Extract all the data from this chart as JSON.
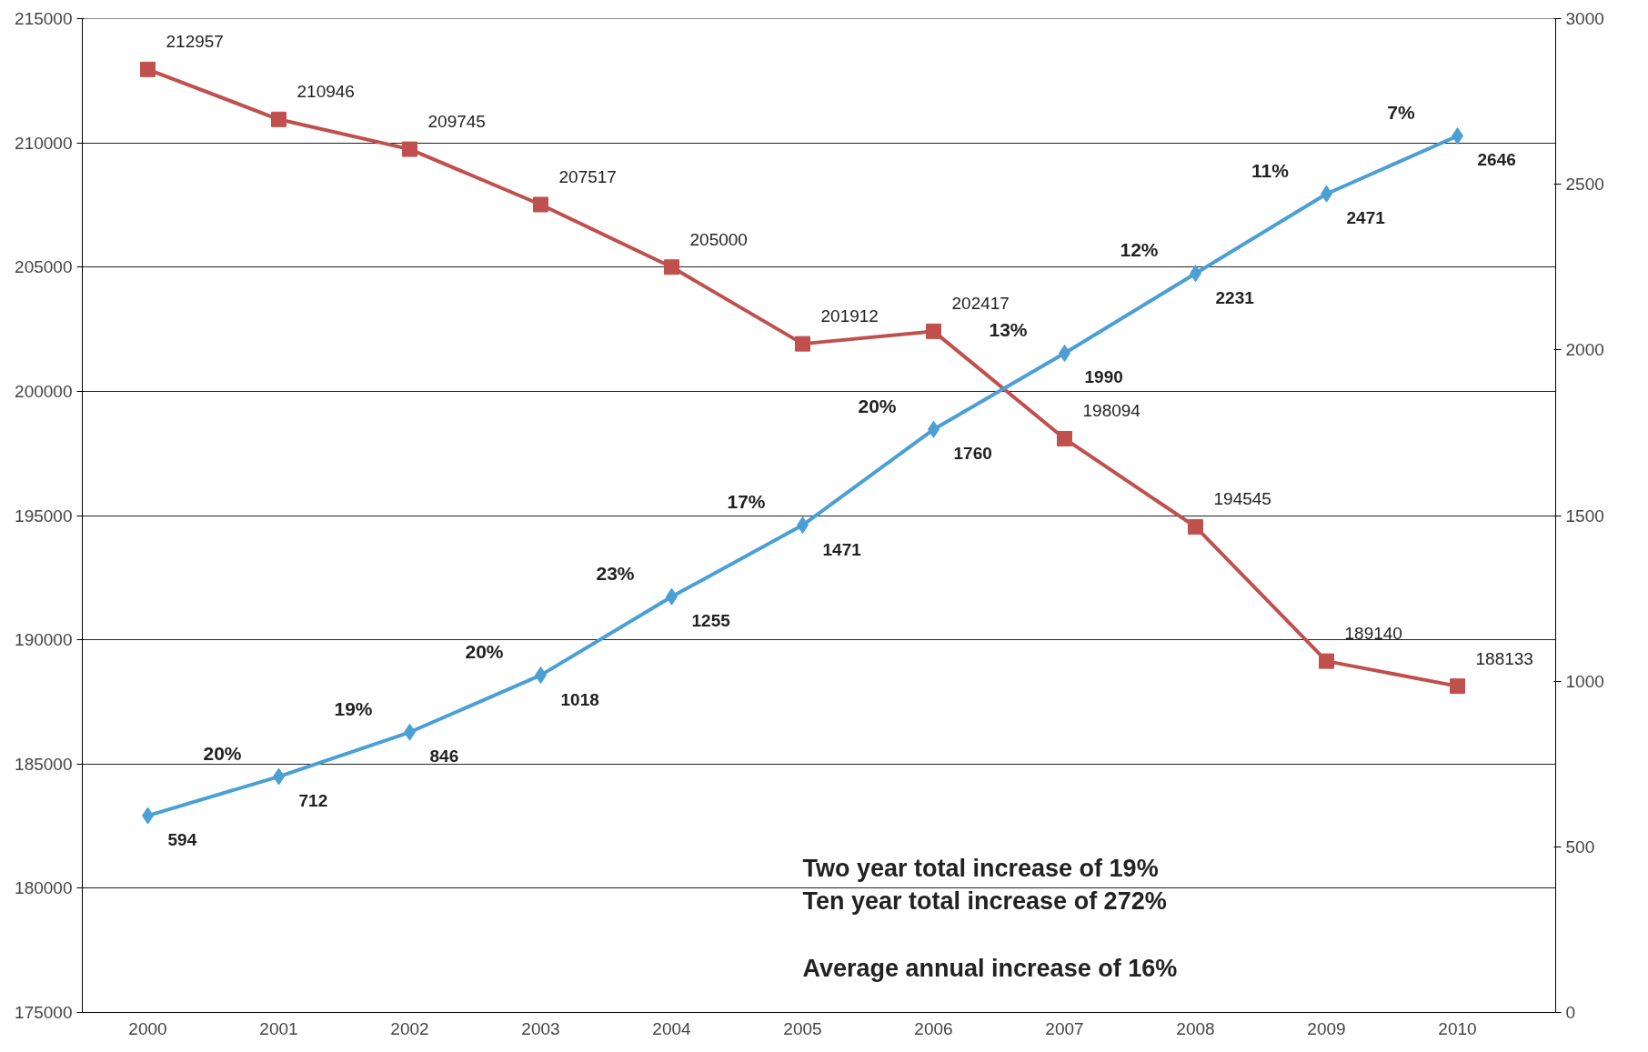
{
  "chart_data": {
    "type": "line",
    "categories": [
      "2000",
      "2001",
      "2002",
      "2003",
      "2004",
      "2005",
      "2006",
      "2007",
      "2008",
      "2009",
      "2010"
    ],
    "series": [
      {
        "color": "#c0504d",
        "marker": "square",
        "values": [
          212957,
          210946,
          209745,
          207517,
          205000,
          201912,
          202417,
          198094,
          194545,
          189140,
          188133
        ]
      },
      {
        "color": "#4a9fd4",
        "marker": "diamond",
        "axis": "y2",
        "values": [
          594,
          712,
          846,
          1018,
          1255,
          1471,
          1760,
          1990,
          2231,
          2471,
          2646
        ]
      }
    ],
    "ylim": [
      175000,
      215000
    ],
    "yticks": [
      175000,
      180000,
      185000,
      190000,
      195000,
      200000,
      205000,
      210000,
      215000
    ],
    "y2lim": [
      0,
      3000
    ],
    "y2ticks": [
      0,
      500,
      1000,
      1500,
      2000,
      2500,
      3000
    ],
    "grid": "y",
    "line_style": "solid",
    "data_labels": true,
    "annotations": [
      "20%",
      "19%",
      "20%",
      "23%",
      "17%",
      "20%",
      "13%",
      "12%",
      "11%",
      "7%",
      "Two year total increase of 19%",
      "Ten year total increase of  272%",
      "Average annual increase of  16%"
    ]
  }
}
